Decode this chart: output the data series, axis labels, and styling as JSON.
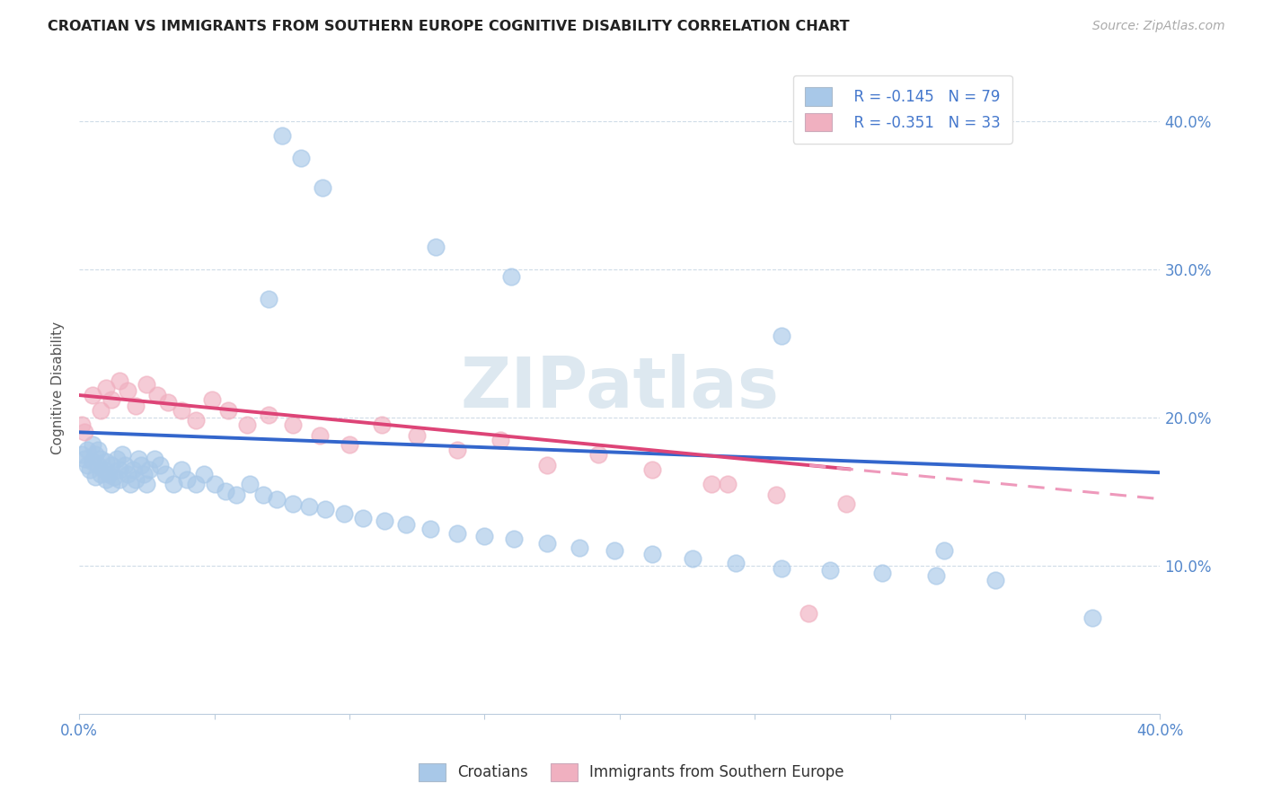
{
  "title": "CROATIAN VS IMMIGRANTS FROM SOUTHERN EUROPE COGNITIVE DISABILITY CORRELATION CHART",
  "source": "Source: ZipAtlas.com",
  "ylabel": "Cognitive Disability",
  "xlim": [
    0.0,
    0.4
  ],
  "ylim": [
    0.0,
    0.44
  ],
  "y_ticks": [
    0.1,
    0.2,
    0.3,
    0.4
  ],
  "y_tick_labels": [
    "10.0%",
    "20.0%",
    "30.0%",
    "40.0%"
  ],
  "croatian_color": "#a8c8e8",
  "croatian_edge": "#88aacc",
  "immigrant_color": "#f0b0c0",
  "immigrant_edge": "#d888a0",
  "regression_blue": "#3366cc",
  "regression_pink": "#dd4477",
  "regression_dashed_color": "#ee99bb",
  "R_croatian": -0.145,
  "N_croatian": 79,
  "R_immigrant": -0.351,
  "N_immigrant": 33,
  "legend_label_1": "Croatians",
  "legend_label_2": "Immigrants from Southern Europe",
  "watermark": "ZIPatlas",
  "blue_intercept": 0.19,
  "blue_slope": -0.068,
  "pink_intercept": 0.215,
  "pink_slope": -0.175,
  "croatian_x": [
    0.001,
    0.002,
    0.003,
    0.003,
    0.004,
    0.005,
    0.005,
    0.006,
    0.006,
    0.007,
    0.007,
    0.008,
    0.008,
    0.009,
    0.01,
    0.01,
    0.011,
    0.012,
    0.012,
    0.013,
    0.014,
    0.015,
    0.015,
    0.016,
    0.017,
    0.018,
    0.019,
    0.02,
    0.021,
    0.022,
    0.023,
    0.024,
    0.025,
    0.026,
    0.028,
    0.03,
    0.032,
    0.035,
    0.038,
    0.04,
    0.043,
    0.046,
    0.05,
    0.054,
    0.058,
    0.063,
    0.068,
    0.073,
    0.079,
    0.085,
    0.091,
    0.098,
    0.105,
    0.113,
    0.121,
    0.13,
    0.14,
    0.15,
    0.161,
    0.173,
    0.185,
    0.198,
    0.212,
    0.227,
    0.243,
    0.26,
    0.278,
    0.297,
    0.317,
    0.339,
    0.075,
    0.082,
    0.09,
    0.07,
    0.132,
    0.16,
    0.26,
    0.32,
    0.375
  ],
  "croatian_y": [
    0.175,
    0.172,
    0.168,
    0.178,
    0.165,
    0.17,
    0.182,
    0.16,
    0.175,
    0.168,
    0.178,
    0.162,
    0.172,
    0.165,
    0.158,
    0.17,
    0.162,
    0.155,
    0.168,
    0.16,
    0.172,
    0.165,
    0.158,
    0.175,
    0.168,
    0.162,
    0.155,
    0.165,
    0.158,
    0.172,
    0.168,
    0.162,
    0.155,
    0.165,
    0.172,
    0.168,
    0.162,
    0.155,
    0.165,
    0.158,
    0.155,
    0.162,
    0.155,
    0.15,
    0.148,
    0.155,
    0.148,
    0.145,
    0.142,
    0.14,
    0.138,
    0.135,
    0.132,
    0.13,
    0.128,
    0.125,
    0.122,
    0.12,
    0.118,
    0.115,
    0.112,
    0.11,
    0.108,
    0.105,
    0.102,
    0.098,
    0.097,
    0.095,
    0.093,
    0.09,
    0.39,
    0.375,
    0.355,
    0.28,
    0.315,
    0.295,
    0.255,
    0.11,
    0.065
  ],
  "immigrant_x": [
    0.001,
    0.002,
    0.005,
    0.008,
    0.01,
    0.012,
    0.015,
    0.018,
    0.021,
    0.025,
    0.029,
    0.033,
    0.038,
    0.043,
    0.049,
    0.055,
    0.062,
    0.07,
    0.079,
    0.089,
    0.1,
    0.112,
    0.125,
    0.14,
    0.156,
    0.173,
    0.192,
    0.212,
    0.234,
    0.258,
    0.284,
    0.24,
    0.27
  ],
  "immigrant_y": [
    0.195,
    0.19,
    0.215,
    0.205,
    0.22,
    0.212,
    0.225,
    0.218,
    0.208,
    0.222,
    0.215,
    0.21,
    0.205,
    0.198,
    0.212,
    0.205,
    0.195,
    0.202,
    0.195,
    0.188,
    0.182,
    0.195,
    0.188,
    0.178,
    0.185,
    0.168,
    0.175,
    0.165,
    0.155,
    0.148,
    0.142,
    0.155,
    0.068
  ]
}
